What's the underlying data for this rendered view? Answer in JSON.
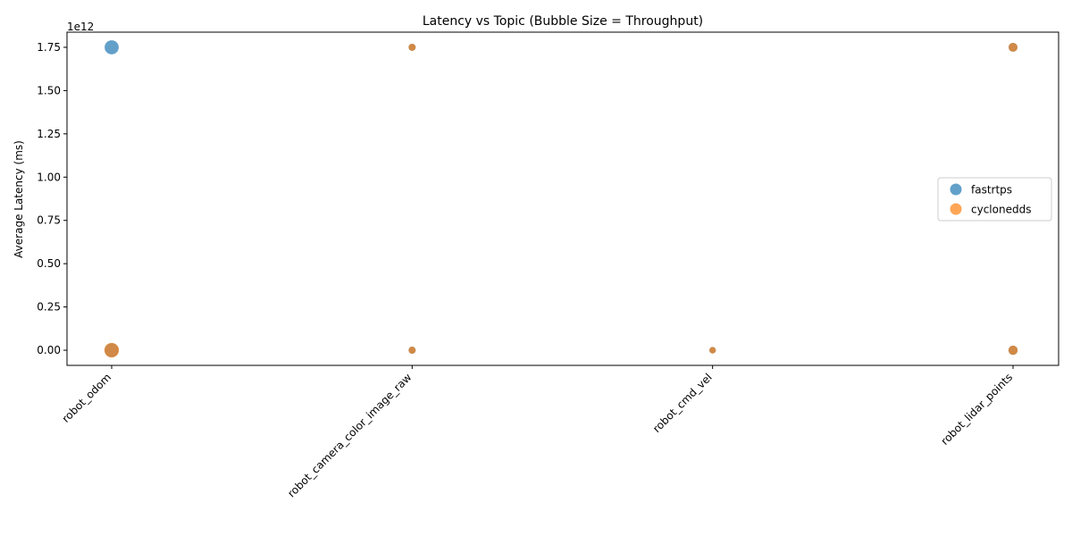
{
  "chart_data": {
    "type": "scatter",
    "title": "Latency vs Topic (Bubble Size = Throughput)",
    "xlabel": "",
    "ylabel": "Average Latency (ms)",
    "y_offset_label": "1e12",
    "categories": [
      "robot_odom",
      "robot_camera_color_image_raw",
      "robot_cmd_vel",
      "robot_lidar_points"
    ],
    "yticks": [
      0.0,
      0.25,
      0.5,
      0.75,
      1.0,
      1.25,
      1.5,
      1.75
    ],
    "ytick_labels": [
      "0.00",
      "0.25",
      "0.50",
      "0.75",
      "1.00",
      "1.25",
      "1.50",
      "1.75"
    ],
    "ylim": [
      -0.0875,
      1.8375
    ],
    "y_scale_factor": 1000000000000,
    "legend_position": "center-right",
    "grid": false,
    "series": [
      {
        "name": "fastrtps",
        "color": "#1f77b4",
        "points": [
          {
            "category": "robot_odom",
            "y": 1.75,
            "throughput": 140
          },
          {
            "category": "robot_odom",
            "y": 0.0,
            "throughput": 140
          },
          {
            "category": "robot_camera_color_image_raw",
            "y": 1.75,
            "throughput": 36
          },
          {
            "category": "robot_camera_color_image_raw",
            "y": 0.0,
            "throughput": 36
          },
          {
            "category": "robot_cmd_vel",
            "y": 0.0,
            "throughput": 30
          },
          {
            "category": "robot_lidar_points",
            "y": 1.75,
            "throughput": 56
          },
          {
            "category": "robot_lidar_points",
            "y": 0.0,
            "throughput": 60
          }
        ]
      },
      {
        "name": "cyclonedds",
        "color": "#ff7f0e",
        "points": [
          {
            "category": "robot_odom",
            "y": 0.0,
            "throughput": 150
          },
          {
            "category": "robot_camera_color_image_raw",
            "y": 1.75,
            "throughput": 36
          },
          {
            "category": "robot_camera_color_image_raw",
            "y": 0.0,
            "throughput": 36
          },
          {
            "category": "robot_cmd_vel",
            "y": 0.0,
            "throughput": 30
          },
          {
            "category": "robot_lidar_points",
            "y": 1.75,
            "throughput": 56
          },
          {
            "category": "robot_lidar_points",
            "y": 0.0,
            "throughput": 60
          }
        ]
      }
    ]
  }
}
